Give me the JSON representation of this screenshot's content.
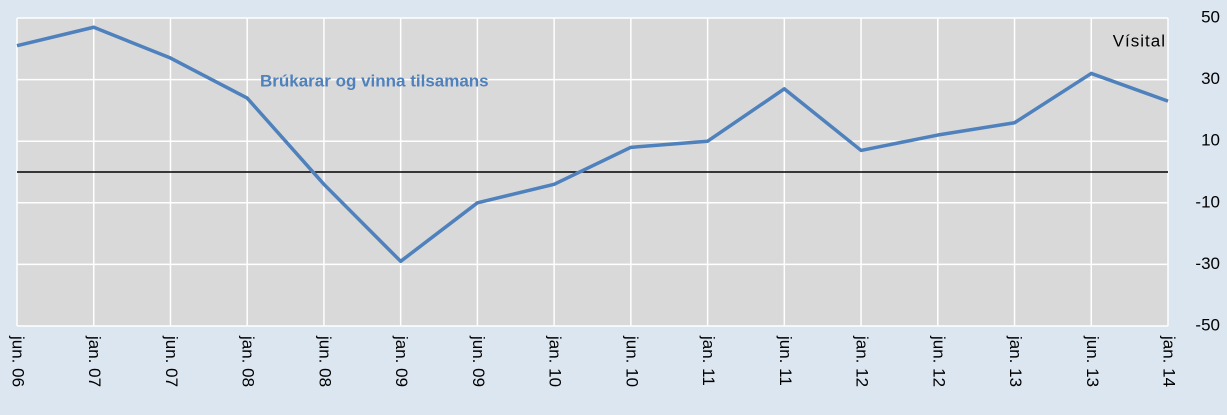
{
  "chart_data": {
    "type": "line",
    "y_axis_label": "Vísital",
    "annotation": "Brúkarar og vinna tilsamans",
    "categories": [
      "jun. 06",
      "jan. 07",
      "jun. 07",
      "jan. 08",
      "jun. 08",
      "jan. 09",
      "jun. 09",
      "jan. 10",
      "jun. 10",
      "jan. 11",
      "jun. 11",
      "jan. 12",
      "jun. 12",
      "jan. 13",
      "jun. 13",
      "jan. 14"
    ],
    "series": [
      {
        "name": "Brúkarar og vinna tilsamans",
        "color": "#4f81bd",
        "values": [
          41,
          47,
          37,
          24,
          -4,
          -29,
          -10,
          -4,
          8,
          10,
          27,
          7,
          12,
          16,
          32,
          23
        ]
      }
    ],
    "ylim": [
      -50,
      50
    ],
    "yticks": [
      -50,
      -30,
      -10,
      10,
      30,
      50
    ],
    "grid": true,
    "zero_line": true,
    "y_axis_side": "right"
  }
}
